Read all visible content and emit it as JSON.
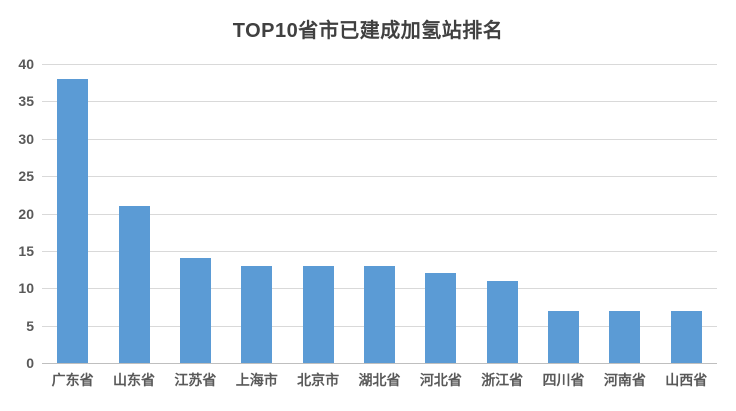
{
  "chart_data": {
    "type": "bar",
    "title": "TOP10省市已建成加氢站排名",
    "categories": [
      "广东省",
      "山东省",
      "江苏省",
      "上海市",
      "北京市",
      "湖北省",
      "河北省",
      "浙江省",
      "四川省",
      "河南省",
      "山西省"
    ],
    "values": [
      38,
      21,
      14,
      13,
      13,
      13,
      12,
      11,
      7,
      7,
      7
    ],
    "xlabel": "",
    "ylabel": "",
    "ylim": [
      0,
      40
    ],
    "yticks": [
      0,
      5,
      10,
      15,
      20,
      25,
      30,
      35,
      40
    ],
    "grid": true,
    "legend": false,
    "colors": {
      "bar": "#5B9BD5",
      "gridline": "#D9D9D9",
      "axis_line": "#BFBFBF",
      "axis_label": "#595959",
      "title": "#404040"
    }
  }
}
